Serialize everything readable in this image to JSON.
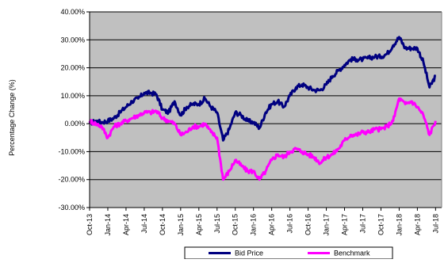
{
  "chart_data": {
    "type": "line",
    "title": "",
    "xlabel": "",
    "ylabel": "Percentage Change (%)",
    "x_tick_labels": [
      "Oct-13",
      "Jan-14",
      "Apr-14",
      "Jul-14",
      "Oct-14",
      "Jan-15",
      "Apr-15",
      "Jul-15",
      "Oct-15",
      "Jan-16",
      "Apr-16",
      "Jul-16",
      "Oct-16",
      "Jan-17",
      "Apr-17",
      "Jul-17",
      "Oct-17",
      "Jan-18",
      "Apr-18",
      "Jul-18"
    ],
    "y_ticks": [
      40,
      30,
      20,
      10,
      0,
      -10,
      -20,
      -30
    ],
    "y_tick_labels": [
      "40.00%",
      "30.00%",
      "20.00%",
      "10.00%",
      "0.00%",
      "-10.00%",
      "-20.00%",
      "-30.00%"
    ],
    "ylim": [
      -30,
      40
    ],
    "grid": true,
    "legend_position": "bottom",
    "colors": {
      "plot_background": "#c0c0c0",
      "gridline": "#000000"
    },
    "series": [
      {
        "name": "Bid Price",
        "color": "#000080",
        "points": [
          [
            "Oct-13",
            0
          ],
          [
            "Nov-13",
            1
          ],
          [
            "Dec-13",
            0.5
          ],
          [
            "Jan-14",
            1
          ],
          [
            "Feb-14",
            2
          ],
          [
            "Mar-14",
            4
          ],
          [
            "Apr-14",
            6
          ],
          [
            "May-14",
            8
          ],
          [
            "Jun-14",
            9
          ],
          [
            "Jul-14",
            11
          ],
          [
            "Aug-14",
            11
          ],
          [
            "Sep-14",
            10.5
          ],
          [
            "Oct-14",
            5
          ],
          [
            "Nov-14",
            4
          ],
          [
            "Dec-14",
            8
          ],
          [
            "Jan-15",
            3
          ],
          [
            "Feb-15",
            6
          ],
          [
            "Mar-15",
            7
          ],
          [
            "Apr-15",
            7
          ],
          [
            "May-15",
            9
          ],
          [
            "Jun-15",
            6
          ],
          [
            "Jul-15",
            4
          ],
          [
            "Aug-15",
            -6
          ],
          [
            "Sep-15",
            -2
          ],
          [
            "Oct-15",
            4
          ],
          [
            "Nov-15",
            3
          ],
          [
            "Dec-15",
            1
          ],
          [
            "Jan-16",
            0.5
          ],
          [
            "Feb-16",
            -1.5
          ],
          [
            "Mar-16",
            4
          ],
          [
            "Apr-16",
            7
          ],
          [
            "May-16",
            8
          ],
          [
            "Jun-16",
            6
          ],
          [
            "Jul-16",
            10
          ],
          [
            "Aug-16",
            13
          ],
          [
            "Sep-16",
            14
          ],
          [
            "Oct-16",
            13
          ],
          [
            "Nov-16",
            12
          ],
          [
            "Dec-16",
            12
          ],
          [
            "Jan-17",
            14
          ],
          [
            "Feb-17",
            17
          ],
          [
            "Mar-17",
            19
          ],
          [
            "Apr-17",
            21
          ],
          [
            "May-17",
            23
          ],
          [
            "Jun-17",
            23
          ],
          [
            "Jul-17",
            23
          ],
          [
            "Aug-17",
            23.5
          ],
          [
            "Sep-17",
            24
          ],
          [
            "Oct-17",
            24
          ],
          [
            "Nov-17",
            25
          ],
          [
            "Dec-17",
            28
          ],
          [
            "Jan-18",
            31
          ],
          [
            "Feb-18",
            27
          ],
          [
            "Mar-18",
            27
          ],
          [
            "Apr-18",
            27
          ],
          [
            "May-18",
            22
          ],
          [
            "Jun-18",
            13
          ],
          [
            "Jul-18",
            17
          ]
        ]
      },
      {
        "name": "Benchmark",
        "color": "#ff00ff",
        "points": [
          [
            "Oct-13",
            1
          ],
          [
            "Nov-13",
            0
          ],
          [
            "Dec-13",
            -1
          ],
          [
            "Jan-14",
            -5
          ],
          [
            "Feb-14",
            -1
          ],
          [
            "Mar-14",
            0
          ],
          [
            "Apr-14",
            1
          ],
          [
            "May-14",
            2
          ],
          [
            "Jun-14",
            3
          ],
          [
            "Jul-14",
            4
          ],
          [
            "Aug-14",
            4
          ],
          [
            "Sep-14",
            4.5
          ],
          [
            "Oct-14",
            2
          ],
          [
            "Nov-14",
            1
          ],
          [
            "Dec-14",
            0
          ],
          [
            "Jan-15",
            -4
          ],
          [
            "Feb-15",
            -3
          ],
          [
            "Mar-15",
            -1
          ],
          [
            "Apr-15",
            -1
          ],
          [
            "May-15",
            0
          ],
          [
            "Jun-15",
            -3
          ],
          [
            "Jul-15",
            -5
          ],
          [
            "Aug-15",
            -20
          ],
          [
            "Sep-15",
            -17
          ],
          [
            "Oct-15",
            -13
          ],
          [
            "Nov-15",
            -15
          ],
          [
            "Dec-15",
            -17
          ],
          [
            "Jan-16",
            -17
          ],
          [
            "Feb-16",
            -20
          ],
          [
            "Mar-16",
            -17
          ],
          [
            "Apr-16",
            -13
          ],
          [
            "May-16",
            -11
          ],
          [
            "Jun-16",
            -12
          ],
          [
            "Jul-16",
            -10
          ],
          [
            "Aug-16",
            -9
          ],
          [
            "Sep-16",
            -10
          ],
          [
            "Oct-16",
            -11
          ],
          [
            "Nov-16",
            -12
          ],
          [
            "Dec-16",
            -14
          ],
          [
            "Jan-17",
            -12
          ],
          [
            "Feb-17",
            -11
          ],
          [
            "Mar-17",
            -9
          ],
          [
            "Apr-17",
            -6
          ],
          [
            "May-17",
            -4
          ],
          [
            "Jun-17",
            -4
          ],
          [
            "Jul-17",
            -3
          ],
          [
            "Aug-17",
            -3
          ],
          [
            "Sep-17",
            -2
          ],
          [
            "Oct-17",
            -2
          ],
          [
            "Nov-17",
            -1
          ],
          [
            "Dec-17",
            1
          ],
          [
            "Jan-18",
            9
          ],
          [
            "Feb-18",
            7
          ],
          [
            "Mar-18",
            8
          ],
          [
            "Apr-18",
            6
          ],
          [
            "May-18",
            3
          ],
          [
            "Jun-18",
            -4
          ],
          [
            "Jul-18",
            1
          ]
        ]
      }
    ]
  }
}
